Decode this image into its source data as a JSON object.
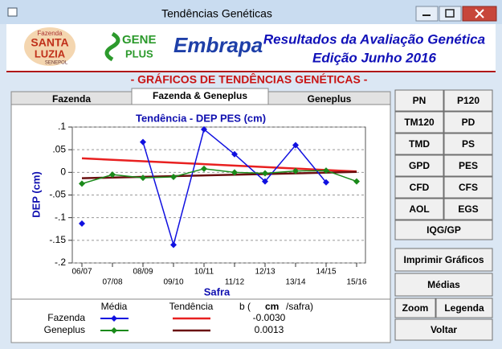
{
  "window": {
    "title": "Tendências Genéticas"
  },
  "header": {
    "logo_farm": [
      "Fazenda",
      "SANTA",
      "LUZIA",
      "SENEPOL"
    ],
    "logo_gene": [
      "GENE",
      "PLUS"
    ],
    "logo_embrapa": "Embrapa",
    "title": "Resultados da Avaliação Genética",
    "subtitle": "Edição Junho 2016"
  },
  "section_title": "- GRÁFICOS DE TENDÊNCIAS GENÉTICAS -",
  "tabs": [
    "Fazenda",
    "Fazenda & Geneplus",
    "Geneplus"
  ],
  "active_tab": 1,
  "buttons": [
    "PN",
    "P120",
    "TM120",
    "PD",
    "TMD",
    "PS",
    "GPD",
    "PES",
    "CFD",
    "CFS",
    "AOL",
    "EGS",
    "IQG/GP",
    "Imprimir Gráficos",
    "Médias",
    "Zoom",
    "Legenda",
    "Voltar"
  ],
  "chart_data": {
    "type": "line",
    "title": "Tendência - DEP PES (cm)",
    "x_label": "Safra",
    "y_label": "DEP (cm)",
    "categories": [
      "06/07",
      "07/08",
      "08/09",
      "09/10",
      "10/11",
      "11/12",
      "12/13",
      "13/14",
      "14/15",
      "15/16"
    ],
    "ylim": [
      -0.2,
      0.1
    ],
    "yticks": [
      {
        "value": 0.1,
        "label": ".1"
      },
      {
        "value": 0.05,
        "label": ".05"
      },
      0,
      {
        "value": -0.05,
        "label": "-.05"
      },
      {
        "value": -0.1,
        "label": "-.1"
      },
      {
        "value": -0.15,
        "label": "-.15"
      },
      {
        "value": -0.2,
        "label": "-.2"
      }
    ],
    "grid": true,
    "series": [
      {
        "name": "Fazenda",
        "color": "#1010e0",
        "values": [
          -0.113,
          null,
          0.067,
          -0.16,
          0.095,
          0.04,
          -0.02,
          0.06,
          -0.022,
          null
        ],
        "trend": {
          "color": "#e82020",
          "values": [
            0.031,
            0.002
          ]
        },
        "slope": "-0.0030"
      },
      {
        "name": "Geneplus",
        "color": "#1a8a1a",
        "values": [
          -0.025,
          -0.005,
          -0.012,
          -0.01,
          0.008,
          0,
          -0.002,
          0.003,
          0.004,
          -0.02
        ],
        "trend": {
          "color": "#6a1010",
          "values": [
            -0.013,
            0.001
          ]
        },
        "slope": "0.0013"
      }
    ],
    "legend_headers": [
      "Média",
      "Tendência"
    ],
    "slope_label": {
      "prefix": "b (",
      "unit": "cm",
      "suffix": "/safra)"
    }
  }
}
